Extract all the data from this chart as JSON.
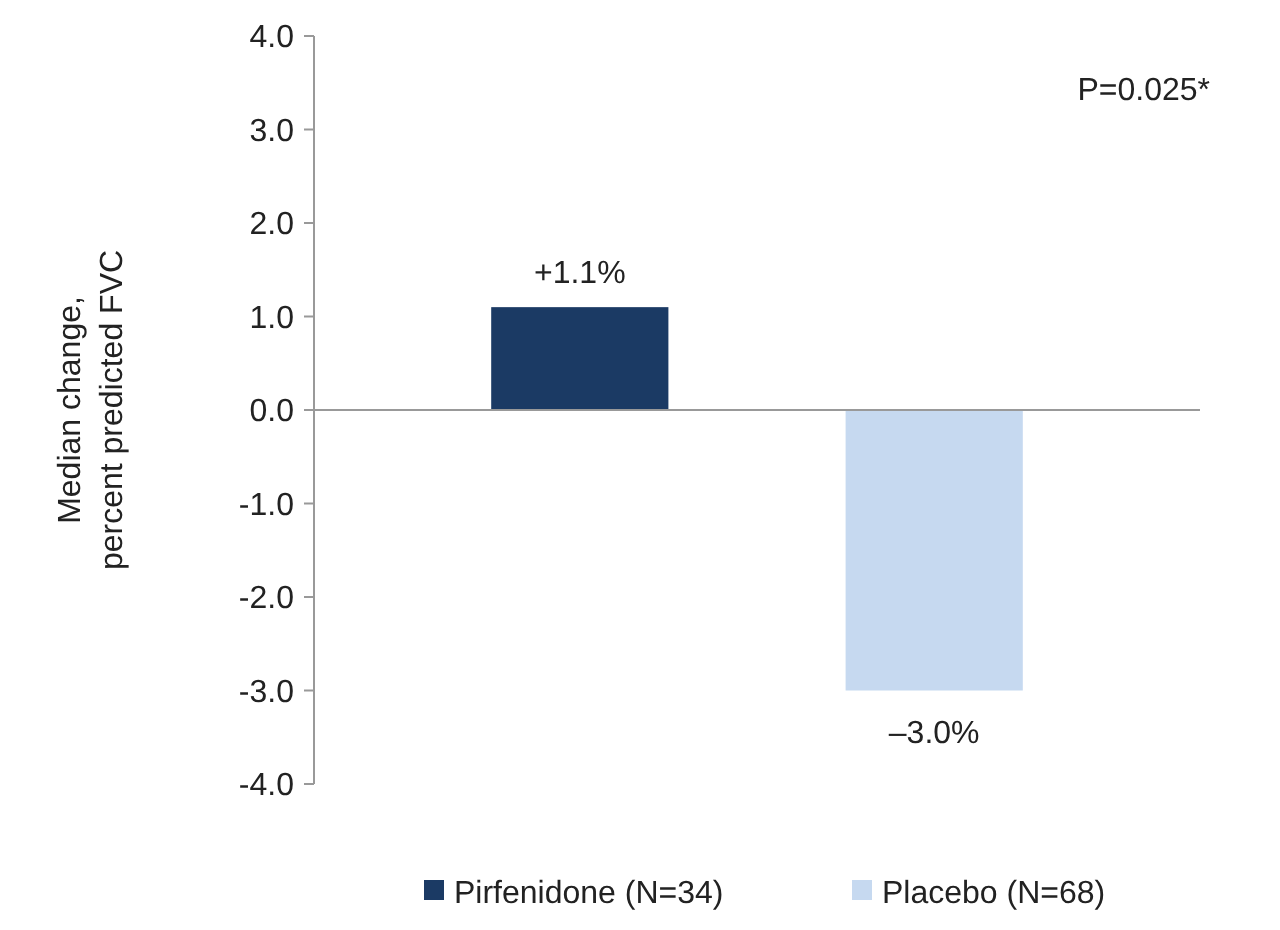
{
  "chart_data": {
    "type": "bar",
    "ylabel": "Median change, percent predicted FVC",
    "categories": [
      null,
      null
    ],
    "series": [
      {
        "name": "Pirfenidone (N=34)",
        "color": "#1b3a64",
        "values": [
          1.1,
          null
        ],
        "value_labels": [
          "+1.1%",
          null
        ]
      },
      {
        "name": "Placebo (N=68)",
        "color": "#c6d9f0",
        "values": [
          null,
          -3.0
        ],
        "value_labels": [
          null,
          "–3.0%"
        ]
      }
    ],
    "ylim": [
      -4,
      4
    ],
    "yticks": [
      {
        "value": -4,
        "label": "-4.0"
      },
      {
        "value": -3,
        "label": "-3.0"
      },
      {
        "value": -2,
        "label": "-2.0"
      },
      {
        "value": -1,
        "label": "-1.0"
      },
      {
        "value": 0,
        "label": "0.0"
      },
      {
        "value": 1,
        "label": "1.0"
      },
      {
        "value": 2,
        "label": "2.0"
      },
      {
        "value": 3,
        "label": "3.0"
      },
      {
        "value": 4,
        "label": "4.0"
      }
    ],
    "annotations": [
      "P=0.025*"
    ],
    "legend": "bottom"
  }
}
